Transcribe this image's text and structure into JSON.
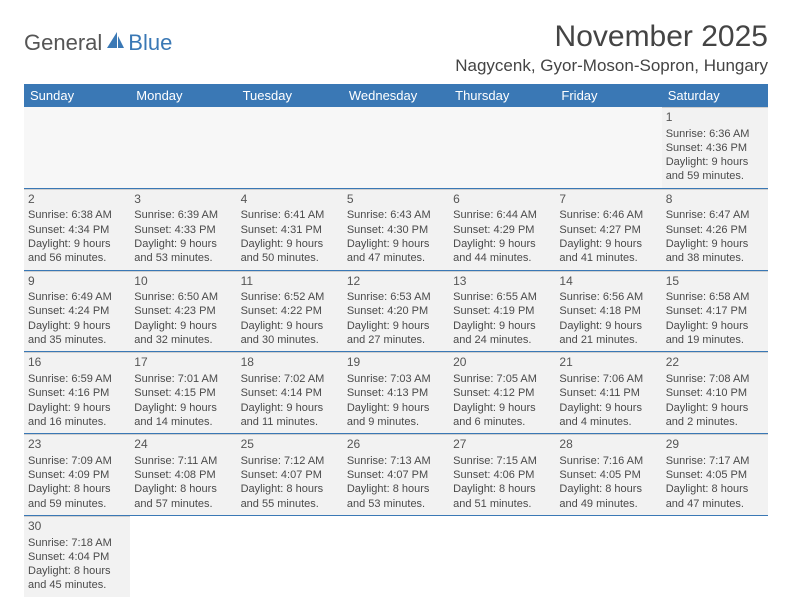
{
  "brand": {
    "part1": "General",
    "part2": "Blue"
  },
  "title": "November 2025",
  "location": "Nagycenk, Gyor-Moson-Sopron, Hungary",
  "weekdays": [
    "Sunday",
    "Monday",
    "Tuesday",
    "Wednesday",
    "Thursday",
    "Friday",
    "Saturday"
  ],
  "colors": {
    "header_bg": "#3a78b5",
    "header_text": "#ffffff",
    "cell_bg": "#f2f2f2",
    "border": "#3a78b5",
    "text": "#4a4a4a"
  },
  "weeks": [
    [
      null,
      null,
      null,
      null,
      null,
      null,
      {
        "n": "1",
        "sr": "Sunrise: 6:36 AM",
        "ss": "Sunset: 4:36 PM",
        "dl1": "Daylight: 9 hours",
        "dl2": "and 59 minutes."
      }
    ],
    [
      {
        "n": "2",
        "sr": "Sunrise: 6:38 AM",
        "ss": "Sunset: 4:34 PM",
        "dl1": "Daylight: 9 hours",
        "dl2": "and 56 minutes."
      },
      {
        "n": "3",
        "sr": "Sunrise: 6:39 AM",
        "ss": "Sunset: 4:33 PM",
        "dl1": "Daylight: 9 hours",
        "dl2": "and 53 minutes."
      },
      {
        "n": "4",
        "sr": "Sunrise: 6:41 AM",
        "ss": "Sunset: 4:31 PM",
        "dl1": "Daylight: 9 hours",
        "dl2": "and 50 minutes."
      },
      {
        "n": "5",
        "sr": "Sunrise: 6:43 AM",
        "ss": "Sunset: 4:30 PM",
        "dl1": "Daylight: 9 hours",
        "dl2": "and 47 minutes."
      },
      {
        "n": "6",
        "sr": "Sunrise: 6:44 AM",
        "ss": "Sunset: 4:29 PM",
        "dl1": "Daylight: 9 hours",
        "dl2": "and 44 minutes."
      },
      {
        "n": "7",
        "sr": "Sunrise: 6:46 AM",
        "ss": "Sunset: 4:27 PM",
        "dl1": "Daylight: 9 hours",
        "dl2": "and 41 minutes."
      },
      {
        "n": "8",
        "sr": "Sunrise: 6:47 AM",
        "ss": "Sunset: 4:26 PM",
        "dl1": "Daylight: 9 hours",
        "dl2": "and 38 minutes."
      }
    ],
    [
      {
        "n": "9",
        "sr": "Sunrise: 6:49 AM",
        "ss": "Sunset: 4:24 PM",
        "dl1": "Daylight: 9 hours",
        "dl2": "and 35 minutes."
      },
      {
        "n": "10",
        "sr": "Sunrise: 6:50 AM",
        "ss": "Sunset: 4:23 PM",
        "dl1": "Daylight: 9 hours",
        "dl2": "and 32 minutes."
      },
      {
        "n": "11",
        "sr": "Sunrise: 6:52 AM",
        "ss": "Sunset: 4:22 PM",
        "dl1": "Daylight: 9 hours",
        "dl2": "and 30 minutes."
      },
      {
        "n": "12",
        "sr": "Sunrise: 6:53 AM",
        "ss": "Sunset: 4:20 PM",
        "dl1": "Daylight: 9 hours",
        "dl2": "and 27 minutes."
      },
      {
        "n": "13",
        "sr": "Sunrise: 6:55 AM",
        "ss": "Sunset: 4:19 PM",
        "dl1": "Daylight: 9 hours",
        "dl2": "and 24 minutes."
      },
      {
        "n": "14",
        "sr": "Sunrise: 6:56 AM",
        "ss": "Sunset: 4:18 PM",
        "dl1": "Daylight: 9 hours",
        "dl2": "and 21 minutes."
      },
      {
        "n": "15",
        "sr": "Sunrise: 6:58 AM",
        "ss": "Sunset: 4:17 PM",
        "dl1": "Daylight: 9 hours",
        "dl2": "and 19 minutes."
      }
    ],
    [
      {
        "n": "16",
        "sr": "Sunrise: 6:59 AM",
        "ss": "Sunset: 4:16 PM",
        "dl1": "Daylight: 9 hours",
        "dl2": "and 16 minutes."
      },
      {
        "n": "17",
        "sr": "Sunrise: 7:01 AM",
        "ss": "Sunset: 4:15 PM",
        "dl1": "Daylight: 9 hours",
        "dl2": "and 14 minutes."
      },
      {
        "n": "18",
        "sr": "Sunrise: 7:02 AM",
        "ss": "Sunset: 4:14 PM",
        "dl1": "Daylight: 9 hours",
        "dl2": "and 11 minutes."
      },
      {
        "n": "19",
        "sr": "Sunrise: 7:03 AM",
        "ss": "Sunset: 4:13 PM",
        "dl1": "Daylight: 9 hours",
        "dl2": "and 9 minutes."
      },
      {
        "n": "20",
        "sr": "Sunrise: 7:05 AM",
        "ss": "Sunset: 4:12 PM",
        "dl1": "Daylight: 9 hours",
        "dl2": "and 6 minutes."
      },
      {
        "n": "21",
        "sr": "Sunrise: 7:06 AM",
        "ss": "Sunset: 4:11 PM",
        "dl1": "Daylight: 9 hours",
        "dl2": "and 4 minutes."
      },
      {
        "n": "22",
        "sr": "Sunrise: 7:08 AM",
        "ss": "Sunset: 4:10 PM",
        "dl1": "Daylight: 9 hours",
        "dl2": "and 2 minutes."
      }
    ],
    [
      {
        "n": "23",
        "sr": "Sunrise: 7:09 AM",
        "ss": "Sunset: 4:09 PM",
        "dl1": "Daylight: 8 hours",
        "dl2": "and 59 minutes."
      },
      {
        "n": "24",
        "sr": "Sunrise: 7:11 AM",
        "ss": "Sunset: 4:08 PM",
        "dl1": "Daylight: 8 hours",
        "dl2": "and 57 minutes."
      },
      {
        "n": "25",
        "sr": "Sunrise: 7:12 AM",
        "ss": "Sunset: 4:07 PM",
        "dl1": "Daylight: 8 hours",
        "dl2": "and 55 minutes."
      },
      {
        "n": "26",
        "sr": "Sunrise: 7:13 AM",
        "ss": "Sunset: 4:07 PM",
        "dl1": "Daylight: 8 hours",
        "dl2": "and 53 minutes."
      },
      {
        "n": "27",
        "sr": "Sunrise: 7:15 AM",
        "ss": "Sunset: 4:06 PM",
        "dl1": "Daylight: 8 hours",
        "dl2": "and 51 minutes."
      },
      {
        "n": "28",
        "sr": "Sunrise: 7:16 AM",
        "ss": "Sunset: 4:05 PM",
        "dl1": "Daylight: 8 hours",
        "dl2": "and 49 minutes."
      },
      {
        "n": "29",
        "sr": "Sunrise: 7:17 AM",
        "ss": "Sunset: 4:05 PM",
        "dl1": "Daylight: 8 hours",
        "dl2": "and 47 minutes."
      }
    ],
    [
      {
        "n": "30",
        "sr": "Sunrise: 7:18 AM",
        "ss": "Sunset: 4:04 PM",
        "dl1": "Daylight: 8 hours",
        "dl2": "and 45 minutes."
      },
      null,
      null,
      null,
      null,
      null,
      null
    ]
  ]
}
